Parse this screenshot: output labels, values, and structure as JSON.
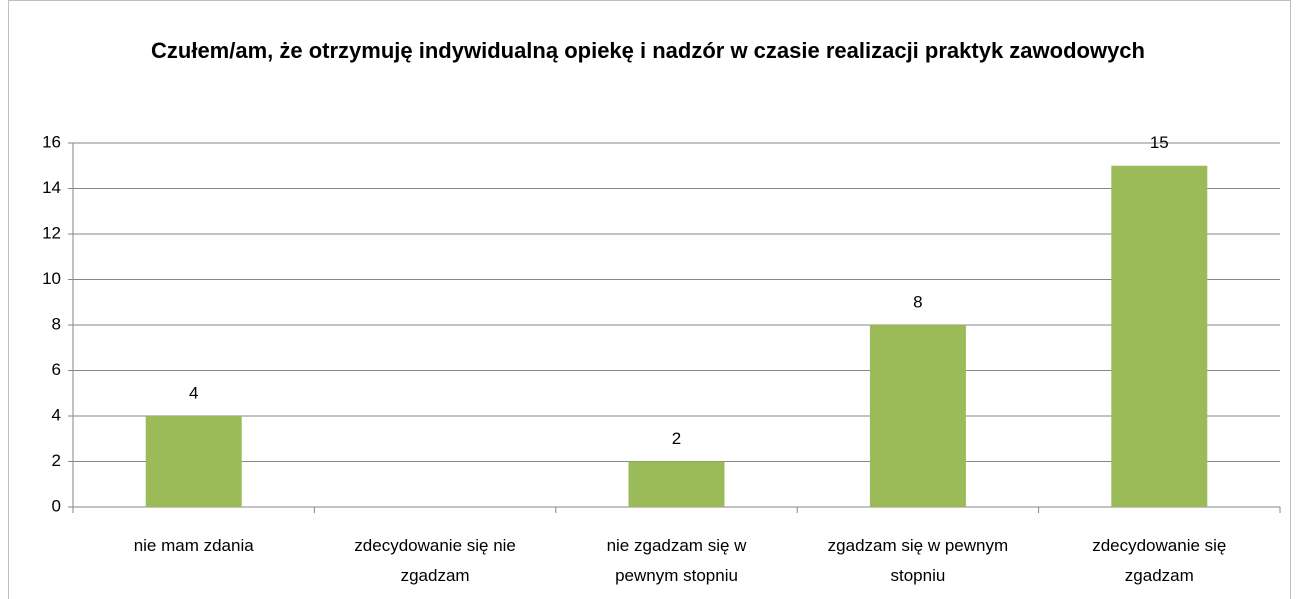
{
  "chart_data": {
    "type": "bar",
    "title": "Czułem/am, że otrzymuję indywidualną opiekę i nadzór w czasie realizacji praktyk zawodowych",
    "categories": [
      "nie mam zdania",
      "zdecydowanie się nie zgadzam",
      "nie zgadzam się w pewnym stopniu",
      "zgadzam się w pewnym stopniu",
      "zdecydowanie się zgadzam"
    ],
    "values": [
      4,
      null,
      2,
      8,
      15
    ],
    "color": "#9bbb59",
    "ylim": [
      0,
      16
    ],
    "yticks": [
      0,
      2,
      4,
      6,
      8,
      10,
      12,
      14,
      16
    ],
    "grid": true
  }
}
